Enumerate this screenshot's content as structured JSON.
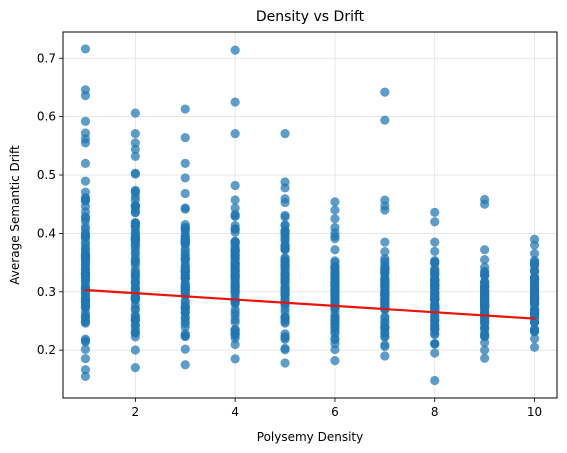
{
  "chart_data": {
    "type": "scatter",
    "title": "Density vs Drift",
    "xlabel": "Polysemy Density",
    "ylabel": "Average Semantic Drift",
    "xlim": [
      0.55,
      10.45
    ],
    "ylim": [
      0.118,
      0.745
    ],
    "xticks": [
      2,
      4,
      6,
      8,
      10
    ],
    "yticks": [
      0.2,
      0.3,
      0.4,
      0.5,
      0.6,
      0.7
    ],
    "ytick_labels": [
      "0.2",
      "0.3",
      "0.4",
      "0.5",
      "0.6",
      "0.7"
    ],
    "grid": true,
    "colors": {
      "points": "#1f77b4",
      "trend": "#e8140c",
      "grid": "#e0e0e0"
    },
    "series": [
      {
        "kind": "points",
        "columns": [
          {
            "x": 1,
            "band": [
              0.155,
              0.52
            ],
            "outliers": [
              0.716,
              0.646,
              0.636,
              0.592,
              0.572,
              0.562,
              0.555
            ]
          },
          {
            "x": 2,
            "band": [
              0.17,
              0.532
            ],
            "outliers": [
              0.606,
              0.571,
              0.555,
              0.544
            ]
          },
          {
            "x": 3,
            "band": [
              0.175,
              0.495
            ],
            "outliers": [
              0.613,
              0.564,
              0.52
            ]
          },
          {
            "x": 4,
            "band": [
              0.185,
              0.482
            ],
            "outliers": [
              0.714,
              0.625,
              0.571
            ]
          },
          {
            "x": 5,
            "band": [
              0.178,
              0.478
            ],
            "outliers": [
              0.571,
              0.488
            ]
          },
          {
            "x": 6,
            "band": [
              0.182,
              0.41
            ],
            "outliers": [
              0.454,
              0.44,
              0.425
            ]
          },
          {
            "x": 7,
            "band": [
              0.19,
              0.385
            ],
            "outliers": [
              0.642,
              0.594,
              0.457,
              0.447,
              0.44
            ]
          },
          {
            "x": 8,
            "band": [
              0.195,
              0.385
            ],
            "outliers": [
              0.436,
              0.42,
              0.148
            ]
          },
          {
            "x": 9,
            "band": [
              0.2,
              0.355
            ],
            "outliers": [
              0.458,
              0.45,
              0.372,
              0.186
            ]
          },
          {
            "x": 10,
            "band": [
              0.205,
              0.38
            ],
            "outliers": [
              0.39
            ]
          }
        ]
      },
      {
        "kind": "trend",
        "x": [
          1,
          10
        ],
        "y": [
          0.303,
          0.254
        ]
      }
    ]
  }
}
